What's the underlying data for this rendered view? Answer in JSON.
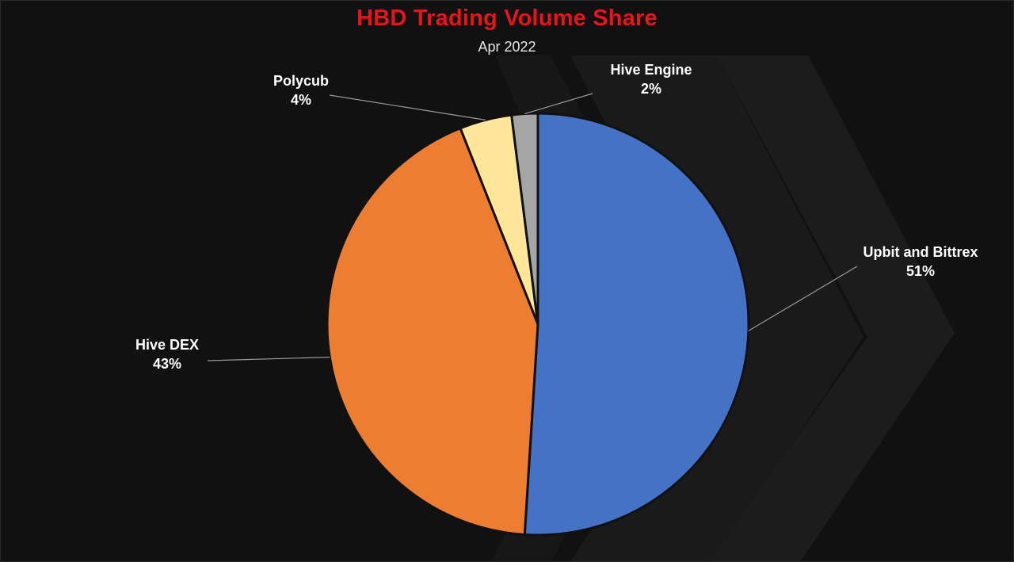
{
  "chart_data": {
    "type": "pie",
    "title": "HBD Trading Volume Share",
    "subtitle": "Apr 2022",
    "categories": [
      "Upbit and Bittrex",
      "Hive DEX",
      "Polycub",
      "Hive Engine"
    ],
    "values": [
      51,
      43,
      4,
      2
    ],
    "value_labels": [
      "51%",
      "43%",
      "4%",
      "2%"
    ],
    "colors": [
      "#4472c4",
      "#ed7d31",
      "#ffe699",
      "#a5a5a5"
    ],
    "legend": "none",
    "label_position": "outside-with-leader-lines"
  },
  "colors": {
    "title": "#e8141c",
    "background": "#111111",
    "slice_border": "#111111",
    "leader_line": "#9a9a9a"
  }
}
